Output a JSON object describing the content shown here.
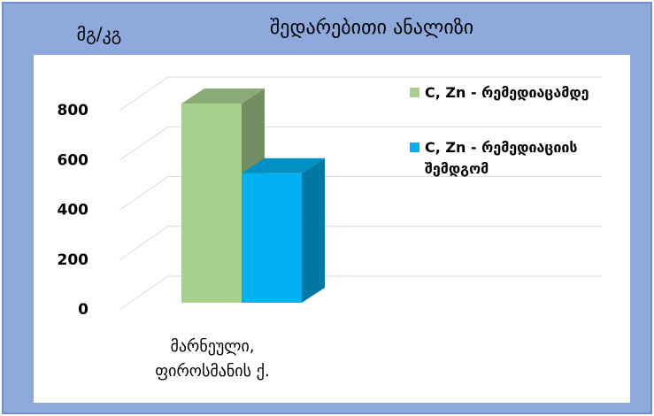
{
  "chart_data": {
    "type": "bar3d",
    "title": "შედარებითი ანალიზი",
    "y_label": "მგ/კგ",
    "categories": [
      "მარნეული, ფიროსმანის ქ."
    ],
    "series": [
      {
        "name": "C, Zn - რემედიაცამდე",
        "color": "#a9d18e",
        "values": [
          800
        ]
      },
      {
        "name": "C, Zn - რემედიაციის შემდგომ",
        "color": "#00b0f0",
        "values": [
          520
        ]
      }
    ],
    "ylim": [
      0,
      800
    ],
    "yticks": [
      0,
      200,
      400,
      600,
      800
    ],
    "grid": true,
    "legend": "right"
  }
}
